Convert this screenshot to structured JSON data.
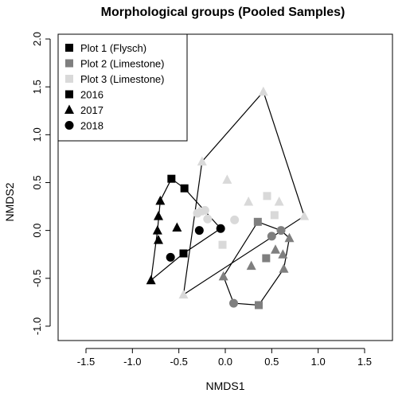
{
  "chart_data": {
    "type": "scatter",
    "title": "Morphological groups (Pooled Samples)",
    "xlabel": "NMDS1",
    "ylabel": "NMDS2",
    "xlim": [
      -1.8,
      1.8
    ],
    "ylim": [
      -1.15,
      2.05
    ],
    "xticks": [
      -1.5,
      -1.0,
      -0.5,
      0.0,
      0.5,
      1.0,
      1.5
    ],
    "yticks": [
      -1.0,
      -0.5,
      0.0,
      0.5,
      1.0,
      1.5,
      2.0
    ],
    "grid": false,
    "legend_position": "top-left",
    "colors": {
      "plot1": "#000000",
      "plot2": "#7f7f7f",
      "plot3": "#d9d9d9"
    },
    "legend": [
      {
        "label": "Plot 1 (Flysch)",
        "shape": "square",
        "color": "plot1"
      },
      {
        "label": "Plot 2 (Limestone)",
        "shape": "square",
        "color": "plot2"
      },
      {
        "label": "Plot 3 (Limestone)",
        "shape": "square",
        "color": "plot3"
      },
      {
        "label": "2016",
        "shape": "square",
        "color": "plot1"
      },
      {
        "label": "2017",
        "shape": "triangle",
        "color": "plot1"
      },
      {
        "label": "2018",
        "shape": "circle",
        "color": "plot1"
      }
    ],
    "series": [
      {
        "plot": 1,
        "year": 2016,
        "shape": "square",
        "color": "plot1",
        "points": [
          [
            -0.58,
            0.54
          ],
          [
            -0.44,
            0.44
          ],
          [
            -0.45,
            -0.24
          ]
        ]
      },
      {
        "plot": 1,
        "year": 2017,
        "shape": "triangle",
        "color": "plot1",
        "points": [
          [
            -0.7,
            0.31
          ],
          [
            -0.72,
            0.15
          ],
          [
            -0.52,
            0.03
          ],
          [
            -0.73,
            0.0
          ],
          [
            -0.72,
            -0.1
          ],
          [
            -0.8,
            -0.52
          ]
        ]
      },
      {
        "plot": 1,
        "year": 2018,
        "shape": "circle",
        "color": "plot1",
        "points": [
          [
            -0.28,
            0.0
          ],
          [
            -0.05,
            0.02
          ],
          [
            -0.59,
            -0.28
          ]
        ]
      },
      {
        "plot": 2,
        "year": 2016,
        "shape": "square",
        "color": "plot2",
        "points": [
          [
            0.35,
            0.09
          ],
          [
            0.44,
            -0.29
          ],
          [
            0.36,
            -0.78
          ]
        ]
      },
      {
        "plot": 2,
        "year": 2017,
        "shape": "triangle",
        "color": "plot2",
        "points": [
          [
            0.54,
            -0.2
          ],
          [
            0.62,
            -0.25
          ],
          [
            0.69,
            -0.08
          ],
          [
            0.28,
            -0.37
          ],
          [
            0.63,
            -0.4
          ],
          [
            -0.02,
            -0.48
          ]
        ]
      },
      {
        "plot": 2,
        "year": 2018,
        "shape": "circle",
        "color": "plot2",
        "points": [
          [
            0.6,
            0.0
          ],
          [
            0.5,
            -0.06
          ],
          [
            0.09,
            -0.76
          ]
        ]
      },
      {
        "plot": 3,
        "year": 2016,
        "shape": "square",
        "color": "plot3",
        "points": [
          [
            0.45,
            0.36
          ],
          [
            -0.03,
            -0.15
          ],
          [
            0.53,
            0.16
          ]
        ]
      },
      {
        "plot": 3,
        "year": 2017,
        "shape": "triangle",
        "color": "plot3",
        "points": [
          [
            0.41,
            1.45
          ],
          [
            -0.25,
            0.72
          ],
          [
            0.02,
            0.53
          ],
          [
            -0.28,
            0.2
          ],
          [
            0.25,
            0.3
          ],
          [
            0.58,
            0.3
          ],
          [
            0.85,
            0.15
          ],
          [
            -0.45,
            -0.67
          ]
        ]
      },
      {
        "plot": 3,
        "year": 2018,
        "shape": "circle",
        "color": "plot3",
        "points": [
          [
            -0.22,
            0.21
          ],
          [
            -0.19,
            0.12
          ],
          [
            0.1,
            0.11
          ],
          [
            -0.3,
            0.18
          ]
        ]
      }
    ],
    "hulls": [
      {
        "plot": 1,
        "points": [
          [
            -0.58,
            0.54
          ],
          [
            -0.44,
            0.44
          ],
          [
            -0.05,
            0.02
          ],
          [
            -0.45,
            -0.24
          ],
          [
            -0.8,
            -0.52
          ],
          [
            -0.73,
            0.0
          ],
          [
            -0.7,
            0.31
          ]
        ]
      },
      {
        "plot": 2,
        "points": [
          [
            0.35,
            0.09
          ],
          [
            0.6,
            0.0
          ],
          [
            0.69,
            -0.08
          ],
          [
            0.63,
            -0.4
          ],
          [
            0.36,
            -0.78
          ],
          [
            0.09,
            -0.76
          ],
          [
            -0.02,
            -0.48
          ]
        ]
      },
      {
        "plot": 3,
        "points": [
          [
            -0.25,
            0.72
          ],
          [
            0.41,
            1.45
          ],
          [
            0.85,
            0.15
          ],
          [
            -0.45,
            -0.67
          ]
        ]
      }
    ]
  }
}
